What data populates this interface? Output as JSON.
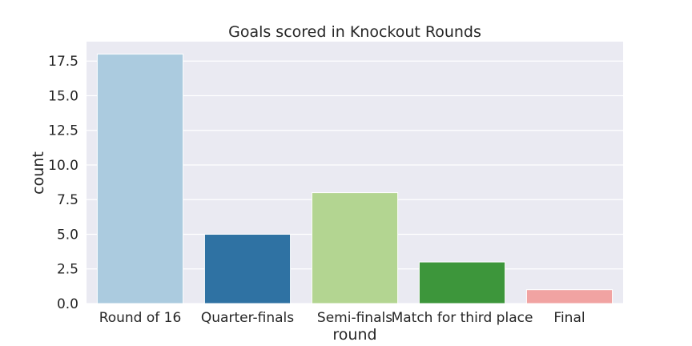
{
  "chart_data": {
    "type": "bar",
    "title": "Goals scored in Knockout Rounds",
    "xlabel": "round",
    "ylabel": "count",
    "categories": [
      "Round of 16",
      "Quarter-finals",
      "Semi-finals",
      "Match for third place",
      "Final"
    ],
    "values": [
      18,
      5,
      8,
      3,
      1
    ],
    "colors": [
      "#abcbdf",
      "#2f72a3",
      "#b3d591",
      "#3d963b",
      "#f1a3a2"
    ],
    "ylim": [
      0,
      18.9
    ],
    "yticks": [
      0,
      2.5,
      5,
      7.5,
      10,
      12.5,
      15,
      17.5
    ],
    "ytick_labels": [
      "0.0",
      "2.5",
      "5.0",
      "7.5",
      "10.0",
      "12.5",
      "15.0",
      "17.5"
    ],
    "grid": true,
    "background": "#eaeaf2"
  }
}
